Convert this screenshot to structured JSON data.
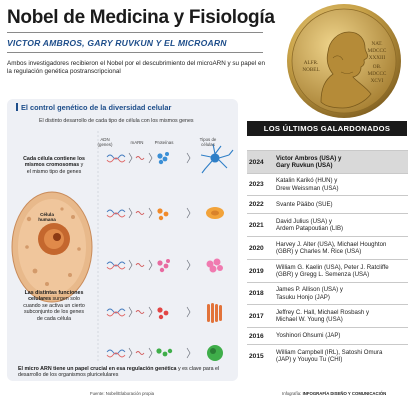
{
  "header": {
    "title": "Nobel de Medicina y Fisiología",
    "subtitle": "VICTOR AMBROS, GARY RUVKUN Y EL MICROARN",
    "intro": "Ambos investigadores recibieron el Nobel por el descubrimiento del microARN y su papel en la regulación genética postranscripcional"
  },
  "medal": {
    "inscription_lines": [
      "NAT.",
      "MDCCC",
      "XXXIII",
      "OB.",
      "MDCCC",
      "XCVI"
    ],
    "name_lines": [
      "ALFR.",
      "NOBEL"
    ]
  },
  "panel": {
    "title": "El control genético de la diversidad celular",
    "subtitle": "El distinto desarrollo de cada tipo de célula con los mismos genes",
    "columns": [
      "ADN (genes)",
      "mARN",
      "Proteínas",
      "Tipos de células"
    ],
    "cell_label": "Célula humana",
    "text_top_bold": "Cada célula contiene los mismos cromosomas",
    "text_top_rest": "y el mismo tipo de genes",
    "text_mid_bold": "Las distintas funciones celulares",
    "text_mid_rest": "surgen solo cuando se activa un cierto subconjunto de los genes de cada célula",
    "footer_bold": "El micro ARN tiene un papel crucial en esa regulación genética",
    "footer_rest": "y es clave para el desarrollo de los organismos pluricelulares"
  },
  "laureates": {
    "heading": "LOS ÚLTIMOS GALARDONADOS",
    "rows": [
      {
        "year": "2024",
        "line1": "Victor Ambros (USA) y",
        "line2": "Gary Ruvkun (USA)",
        "highlight": true
      },
      {
        "year": "2023",
        "line1": "Katalin Karikó (HUN) y",
        "line2": "Drew Weissman (USA)",
        "highlight": false
      },
      {
        "year": "2022",
        "line1": "Svante Pääbo (SUE)",
        "line2": "",
        "highlight": false
      },
      {
        "year": "2021",
        "line1": "David Julius (USA) y",
        "line2": "Ardem Patapoutian (LIB)",
        "highlight": false
      },
      {
        "year": "2020",
        "line1": "Harvey J. Alter (USA), Michael Houghton",
        "line2": "(GBR) y Charles M. Rice (USA)",
        "highlight": false
      },
      {
        "year": "2019",
        "line1": "William G. Kaelin (USA), Peter J. Ratcliffe",
        "line2": "(GBR) y Gregg L. Semenza (USA)",
        "highlight": false
      },
      {
        "year": "2018",
        "line1": "James P. Allison (USA) y",
        "line2": "Tasuku Honjo (JAP)",
        "highlight": false
      },
      {
        "year": "2017",
        "line1": "Jeffrey C. Hall, Michael Rosbash y",
        "line2": "Michael W. Young (USA)",
        "highlight": false
      },
      {
        "year": "2016",
        "line1": "Yoshinori Ohsumi (JAP)",
        "line2": "",
        "highlight": false
      },
      {
        "year": "2015",
        "line1": "William Campbell (IRL), Satoshi Omura",
        "line2": "(JAP) y Youyou Tu (CHI)",
        "highlight": false
      }
    ]
  },
  "footer": {
    "source": "Fuente: Nobel/Elaboración propia",
    "credit_label": "Infografía:",
    "credit_name": "INFOGRAFÍA DISEÑO Y COMUNICACIÓN"
  },
  "colors": {
    "accent_blue": "#1d4d8a",
    "highlight_row": "#d9d9d9",
    "gold": "#c9a349"
  }
}
